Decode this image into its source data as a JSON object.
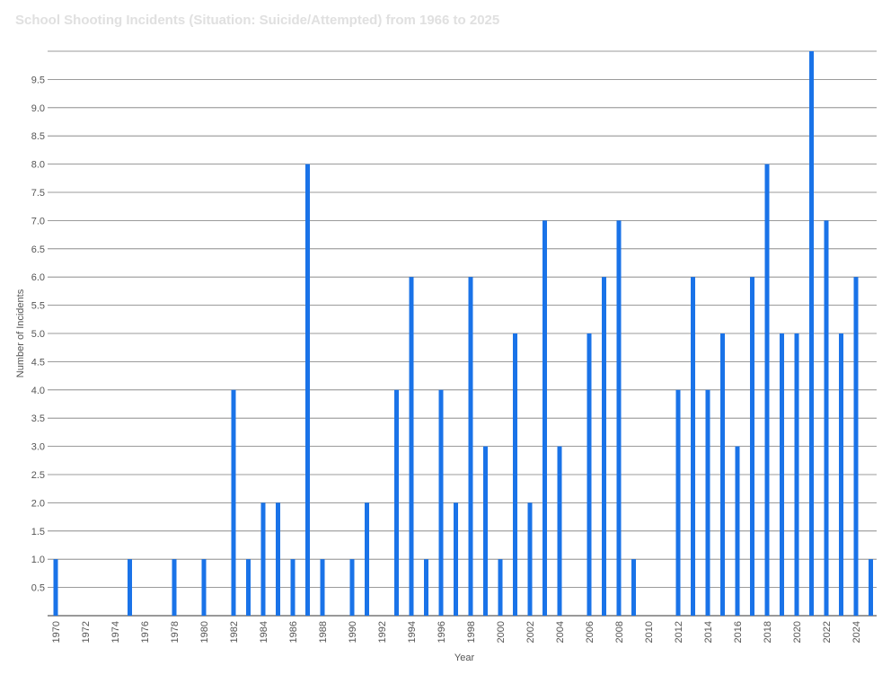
{
  "chart_data": {
    "type": "bar",
    "title": "School Shooting Incidents (Situation: Suicide/Attempted) from 1966 to 2025",
    "xlabel": "Year",
    "ylabel": "Number of Incidents",
    "ylim": [
      0,
      10
    ],
    "y_ticks": [
      "0.5",
      "1.0",
      "1.5",
      "2.0",
      "2.5",
      "3.0",
      "3.5",
      "4.0",
      "4.5",
      "5.0",
      "5.5",
      "6.0",
      "6.5",
      "7.0",
      "7.5",
      "8.0",
      "8.5",
      "9.0",
      "9.5"
    ],
    "x_tick_labels": [
      "1970",
      "1972",
      "1974",
      "1976",
      "1978",
      "1980",
      "1982",
      "1984",
      "1986",
      "1988",
      "1990",
      "1992",
      "1994",
      "1996",
      "1998",
      "2000",
      "2002",
      "2004",
      "2006",
      "2008",
      "2010",
      "2012",
      "2014",
      "2016",
      "2018",
      "2020",
      "2022",
      "2024"
    ],
    "x_range": [
      1970,
      2025
    ],
    "grid": true,
    "legend": "none",
    "bar_color": "#1a73e8",
    "series": [
      {
        "x": [
          1970,
          1975,
          1978,
          1980,
          1982,
          1983,
          1984,
          1985,
          1986,
          1987,
          1988,
          1990,
          1991,
          1993,
          1994,
          1995,
          1996,
          1997,
          1998,
          1999,
          2000,
          2001,
          2002,
          2003,
          2004,
          2006,
          2007,
          2008,
          2009,
          2012,
          2013,
          2014,
          2015,
          2016,
          2017,
          2018,
          2019,
          2020,
          2021,
          2022,
          2023,
          2024,
          2025
        ],
        "values": [
          1,
          1,
          1,
          1,
          4,
          1,
          2,
          2,
          1,
          8,
          1,
          1,
          2,
          4,
          6,
          1,
          4,
          2,
          6,
          3,
          1,
          5,
          2,
          7,
          3,
          5,
          6,
          7,
          1,
          4,
          6,
          4,
          5,
          3,
          6,
          8,
          5,
          5,
          10,
          7,
          5,
          6,
          1
        ]
      }
    ]
  }
}
